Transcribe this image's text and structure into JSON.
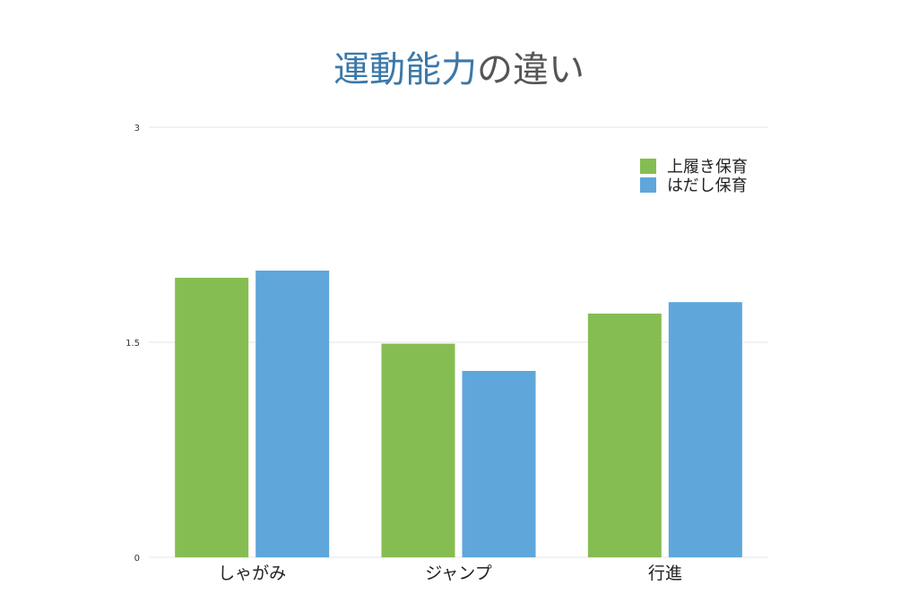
{
  "colors": {
    "title_accent": "#3c78a8",
    "title_rest": "#555555",
    "series_1": "#86bd52",
    "series_2": "#5fa6db",
    "grid": "#e6e6e6",
    "tick_text": "#333333",
    "label_text": "#222222"
  },
  "chart_data": {
    "type": "bar",
    "title": "運動能力の違い",
    "title_parts": [
      "運動能力",
      "の違い"
    ],
    "xlabel": "",
    "ylabel": "",
    "categories": [
      "しゃがみ",
      "ジャンプ",
      "行進"
    ],
    "series": [
      {
        "name": "上履き保育",
        "values": [
          1.95,
          1.49,
          1.7
        ],
        "color": "#86bd52"
      },
      {
        "name": "はだし保育",
        "values": [
          2.0,
          1.3,
          1.78
        ],
        "color": "#5fa6db"
      }
    ],
    "ylim": [
      0,
      3
    ],
    "yticks": [
      0,
      1.5,
      3
    ],
    "ytick_labels": [
      "0",
      "1.5",
      "3"
    ],
    "grid": true,
    "legend_position": "top-right"
  }
}
